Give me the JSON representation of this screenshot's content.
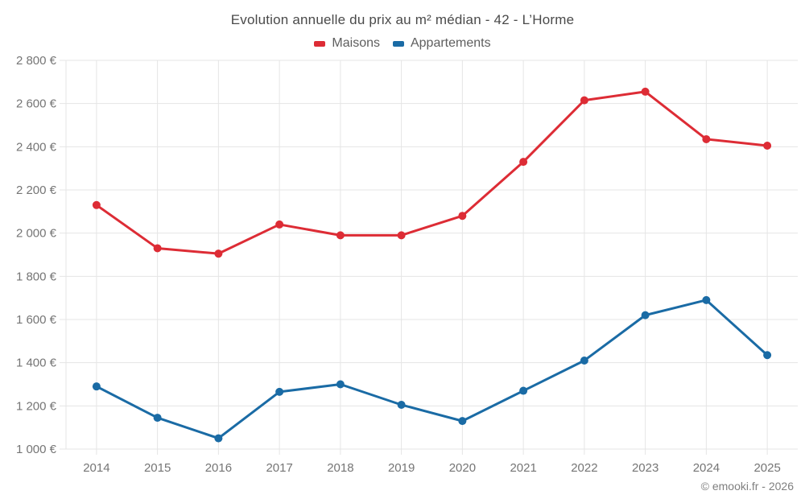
{
  "header": {
    "title": "Evolution annuelle du prix au m² médian - 42 - L’Horme"
  },
  "legend": {
    "items": [
      {
        "label": "Maisons",
        "color": "#dd2c35"
      },
      {
        "label": "Appartements",
        "color": "#1a6ba5"
      }
    ]
  },
  "footer": {
    "credit": "© emooki.fr - 2026"
  },
  "chart_data": {
    "type": "line",
    "title": "Evolution annuelle du prix au m² médian - 42 - L’Horme",
    "categories": [
      "2014",
      "2015",
      "2016",
      "2017",
      "2018",
      "2019",
      "2020",
      "2021",
      "2022",
      "2023",
      "2024",
      "2025"
    ],
    "series": [
      {
        "name": "Maisons",
        "color": "#dd2c35",
        "values": [
          2130,
          1930,
          1905,
          2040,
          1990,
          1990,
          2080,
          2330,
          2615,
          2655,
          2435,
          2405
        ]
      },
      {
        "name": "Appartements",
        "color": "#1a6ba5",
        "values": [
          1290,
          1145,
          1050,
          1265,
          1300,
          1205,
          1130,
          1270,
          1410,
          1620,
          1690,
          1435
        ]
      }
    ],
    "xlabel": "",
    "ylabel": "",
    "ylim": [
      1000,
      2800
    ],
    "ytick_step": 200,
    "ytick_suffix": " €",
    "grid": true,
    "legend_position": "top"
  }
}
